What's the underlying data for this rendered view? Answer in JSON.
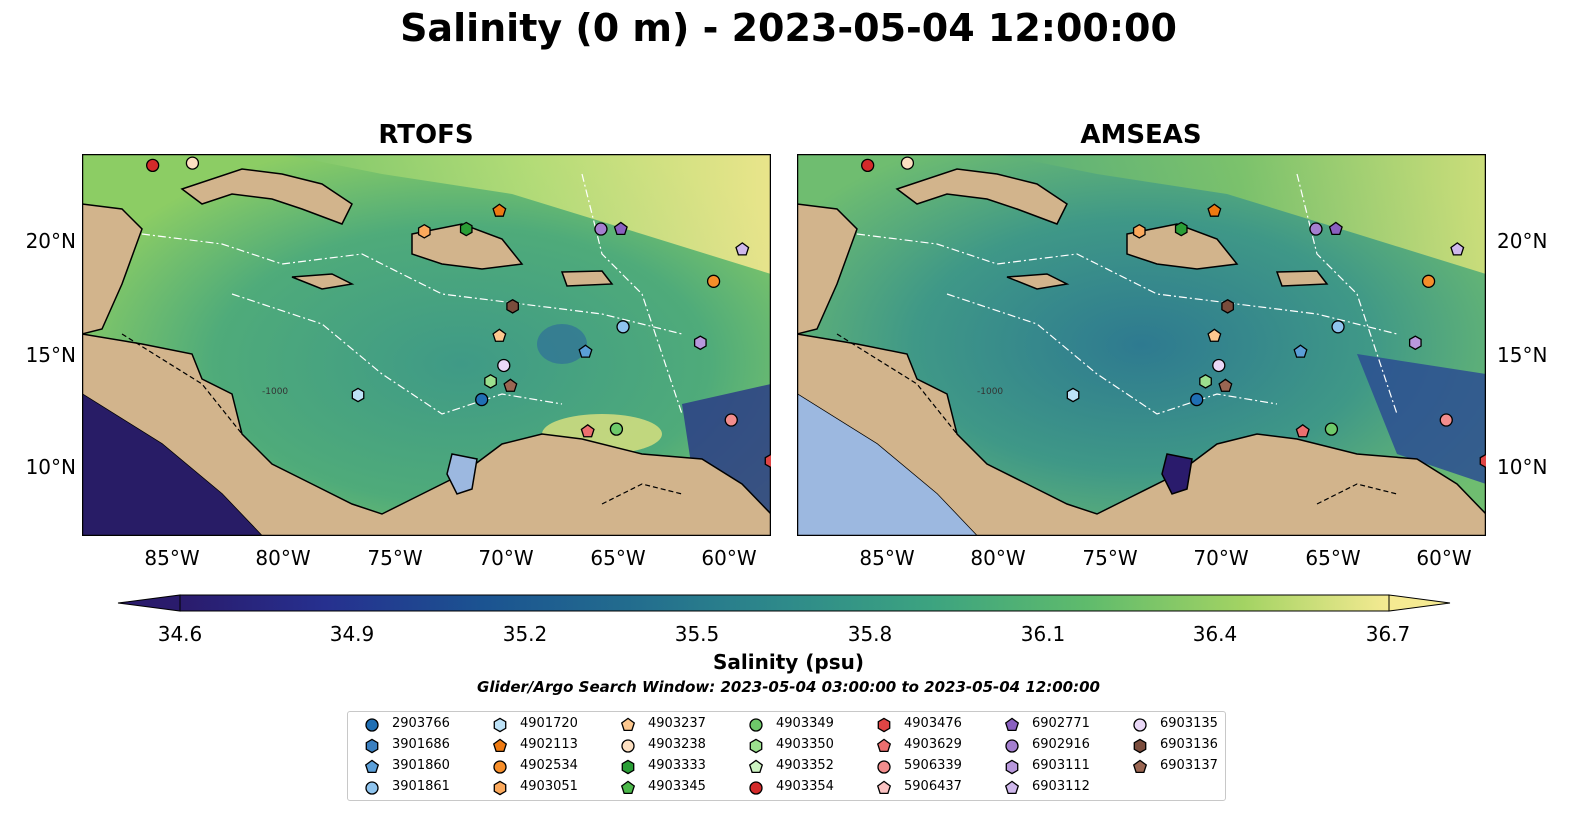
{
  "title": "Salinity (0 m) - 2023-05-04 12:00:00",
  "panels": [
    {
      "title": "RTOFS"
    },
    {
      "title": "AMSEAS"
    }
  ],
  "lat_ticks": [
    "20°N",
    "15°N",
    "10°N"
  ],
  "lon_ticks": [
    "85°W",
    "80°W",
    "75°W",
    "70°W",
    "65°W",
    "60°W"
  ],
  "colorbar": {
    "label": "Salinity (psu)",
    "ticks": [
      "34.6",
      "34.9",
      "35.2",
      "35.5",
      "35.8",
      "36.1",
      "36.4",
      "36.7"
    ],
    "range": [
      34.6,
      36.7
    ],
    "colormap": "haline",
    "extend": "both"
  },
  "search_window": "Glider/Argo Search Window: 2023-05-04 03:00:00 to 2023-05-04 12:00:00",
  "contour_label": "-1000",
  "colors": {
    "land": "#d2b48c",
    "lake": "#9cb8e0",
    "low_salinity": "#2a1b6c",
    "high_salinity": "#f5ea92"
  },
  "legend": [
    {
      "id": "2903766",
      "shape": "circle",
      "color": "#1f6fb4"
    },
    {
      "id": "3901686",
      "shape": "hexagon",
      "color": "#3a7fc0"
    },
    {
      "id": "3901860",
      "shape": "pentagon",
      "color": "#5b9fd8"
    },
    {
      "id": "3901861",
      "shape": "circle",
      "color": "#8fc4ee"
    },
    {
      "id": "4901720",
      "shape": "hexagon",
      "color": "#bde2f7"
    },
    {
      "id": "4902113",
      "shape": "pentagon",
      "color": "#ee7a12"
    },
    {
      "id": "4902534",
      "shape": "circle",
      "color": "#f68e2a"
    },
    {
      "id": "4903051",
      "shape": "hexagon",
      "color": "#fba95c"
    },
    {
      "id": "4903237",
      "shape": "pentagon",
      "color": "#fdc88f"
    },
    {
      "id": "4903238",
      "shape": "circle",
      "color": "#fde0c2"
    },
    {
      "id": "4903333",
      "shape": "hexagon",
      "color": "#2a9e36"
    },
    {
      "id": "4903345",
      "shape": "pentagon",
      "color": "#4cb84a"
    },
    {
      "id": "4903349",
      "shape": "circle",
      "color": "#6ec96a"
    },
    {
      "id": "4903350",
      "shape": "hexagon",
      "color": "#9ce08e"
    },
    {
      "id": "4903352",
      "shape": "pentagon",
      "color": "#cdf3c2"
    },
    {
      "id": "4903354",
      "shape": "circle",
      "color": "#d42a2a"
    },
    {
      "id": "4903476",
      "shape": "hexagon",
      "color": "#e04545"
    },
    {
      "id": "4903629",
      "shape": "pentagon",
      "color": "#ec6f6f"
    },
    {
      "id": "5906339",
      "shape": "circle",
      "color": "#f28d8d"
    },
    {
      "id": "5906437",
      "shape": "pentagon",
      "color": "#fbc2c2"
    },
    {
      "id": "6902771",
      "shape": "pentagon",
      "color": "#8a60c0"
    },
    {
      "id": "6902916",
      "shape": "circle",
      "color": "#a47fcf"
    },
    {
      "id": "6903111",
      "shape": "hexagon",
      "color": "#b898dc"
    },
    {
      "id": "6903112",
      "shape": "pentagon",
      "color": "#cfb8ec"
    },
    {
      "id": "6903135",
      "shape": "circle",
      "color": "#ead8f7"
    },
    {
      "id": "6903136",
      "shape": "hexagon",
      "color": "#7a4c3c"
    },
    {
      "id": "6903137",
      "shape": "pentagon",
      "color": "#9a6652"
    }
  ],
  "floats": [
    {
      "id": "4903354",
      "lon": -86.3,
      "lat": 23.4
    },
    {
      "id": "4903238",
      "lon": -84.5,
      "lat": 23.5
    },
    {
      "id": "4902113",
      "lon": -70.6,
      "lat": 21.4
    },
    {
      "id": "4903051",
      "lon": -74.0,
      "lat": 20.5
    },
    {
      "id": "4903333",
      "lon": -72.1,
      "lat": 20.6
    },
    {
      "id": "6902916",
      "lon": -66.0,
      "lat": 20.6
    },
    {
      "id": "6902771",
      "lon": -65.1,
      "lat": 20.6
    },
    {
      "id": "6903112",
      "lon": -59.6,
      "lat": 19.7
    },
    {
      "id": "4902534",
      "lon": -60.9,
      "lat": 18.3
    },
    {
      "id": "6903136",
      "lon": -70.0,
      "lat": 17.2
    },
    {
      "id": "3901861",
      "lon": -65.0,
      "lat": 16.3
    },
    {
      "id": "4903237",
      "lon": -70.6,
      "lat": 15.9
    },
    {
      "id": "6903111",
      "lon": -61.5,
      "lat": 15.6
    },
    {
      "id": "3901860",
      "lon": -66.7,
      "lat": 15.2
    },
    {
      "id": "6903135",
      "lon": -70.4,
      "lat": 14.6
    },
    {
      "id": "4903350",
      "lon": -71.0,
      "lat": 13.9
    },
    {
      "id": "6903137",
      "lon": -70.1,
      "lat": 13.7
    },
    {
      "id": "4901720",
      "lon": -77.0,
      "lat": 13.3
    },
    {
      "id": "2903766",
      "lon": -71.4,
      "lat": 13.1
    },
    {
      "id": "5906339",
      "lon": -60.1,
      "lat": 12.2
    },
    {
      "id": "4903349",
      "lon": -65.3,
      "lat": 11.8
    },
    {
      "id": "4903629",
      "lon": -66.6,
      "lat": 11.7
    },
    {
      "id": "4903476",
      "lon": -58.3,
      "lat": 10.4
    }
  ]
}
